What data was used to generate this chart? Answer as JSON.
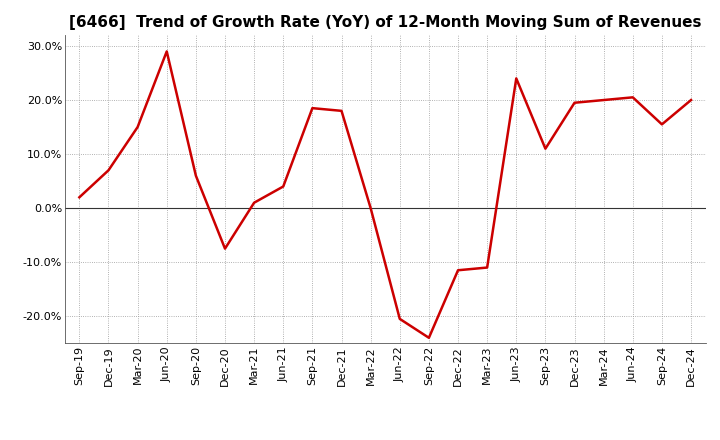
{
  "title": "[6466]  Trend of Growth Rate (YoY) of 12-Month Moving Sum of Revenues",
  "x_labels": [
    "Sep-19",
    "Dec-19",
    "Mar-20",
    "Jun-20",
    "Sep-20",
    "Dec-20",
    "Mar-21",
    "Jun-21",
    "Sep-21",
    "Dec-21",
    "Mar-22",
    "Jun-22",
    "Sep-22",
    "Dec-22",
    "Mar-23",
    "Jun-23",
    "Sep-23",
    "Dec-23",
    "Mar-24",
    "Jun-24",
    "Sep-24",
    "Dec-24"
  ],
  "y_values": [
    2.0,
    7.0,
    15.0,
    29.0,
    6.0,
    -7.5,
    1.0,
    4.0,
    18.5,
    18.0,
    0.0,
    -20.5,
    -24.0,
    -11.5,
    -11.0,
    24.0,
    11.0,
    19.5,
    20.0,
    20.5,
    15.5,
    20.0
  ],
  "line_color": "#cc0000",
  "background_color": "#ffffff",
  "grid_color": "#999999",
  "ylim": [
    -25,
    32
  ],
  "yticks": [
    -20.0,
    -10.0,
    0.0,
    10.0,
    20.0,
    30.0
  ],
  "title_fontsize": 11,
  "axis_fontsize": 8,
  "line_width": 1.8
}
